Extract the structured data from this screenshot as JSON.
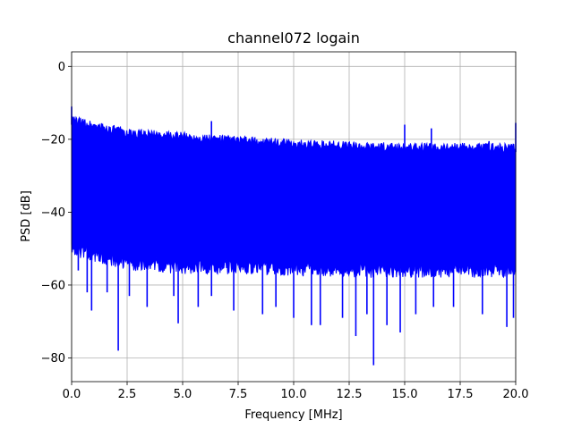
{
  "chart_data": {
    "type": "line",
    "title": "channel072 logain",
    "xlabel": "Frequency [MHz]",
    "ylabel": "PSD [dB]",
    "xlim": [
      0,
      20
    ],
    "ylim": [
      -86.5,
      4
    ],
    "xticks": [
      0,
      2.5,
      5,
      7.5,
      10,
      12.5,
      15,
      17.5,
      20
    ],
    "xtick_labels": [
      "0.0",
      "2.5",
      "5.0",
      "7.5",
      "10.0",
      "12.5",
      "15.0",
      "17.5",
      "20.0"
    ],
    "yticks": [
      0,
      -20,
      -40,
      -60,
      -80
    ],
    "ytick_labels": [
      "0",
      "−20",
      "−40",
      "−60",
      "−80"
    ],
    "grid": true,
    "series": [
      {
        "color": "#0000ff",
        "upper_envelope": [
          [
            0,
            -11
          ],
          [
            0.1,
            -15
          ],
          [
            0.5,
            -17
          ],
          [
            1,
            -18
          ],
          [
            1.2,
            -16
          ],
          [
            1.5,
            -18.5
          ],
          [
            2.5,
            -19
          ],
          [
            3,
            -18.5
          ],
          [
            5,
            -19.5
          ],
          [
            6.3,
            -15
          ],
          [
            6.5,
            -19.5
          ],
          [
            7.5,
            -20
          ],
          [
            10,
            -21
          ],
          [
            12.5,
            -21.5
          ],
          [
            15,
            -16
          ],
          [
            15.1,
            -22
          ],
          [
            16.2,
            -17
          ],
          [
            16.4,
            -22
          ],
          [
            17.5,
            -22
          ],
          [
            18.8,
            -20.5
          ],
          [
            20,
            -22
          ],
          [
            20,
            -15.5
          ]
        ],
        "band_upper": [
          [
            0,
            -16
          ],
          [
            2.5,
            -19.5
          ],
          [
            5,
            -20.5
          ],
          [
            7.5,
            -21.5
          ],
          [
            10,
            -22.5
          ],
          [
            12.5,
            -23
          ],
          [
            15,
            -23.5
          ],
          [
            17.5,
            -23.5
          ],
          [
            20,
            -23.5
          ]
        ],
        "band_lower": [
          [
            0,
            -48
          ],
          [
            2.5,
            -52
          ],
          [
            5,
            -53
          ],
          [
            7.5,
            -53
          ],
          [
            10,
            -53.5
          ],
          [
            12.5,
            -54
          ],
          [
            15,
            -54
          ],
          [
            17.5,
            -54
          ],
          [
            20,
            -54
          ]
        ],
        "lower_spikes": [
          [
            0.3,
            -56
          ],
          [
            0.7,
            -62
          ],
          [
            0.9,
            -67
          ],
          [
            1.6,
            -62
          ],
          [
            2.1,
            -78
          ],
          [
            2.6,
            -63
          ],
          [
            3.4,
            -66
          ],
          [
            4.6,
            -63
          ],
          [
            4.8,
            -70.5
          ],
          [
            5.7,
            -66
          ],
          [
            6.3,
            -63
          ],
          [
            7.3,
            -67
          ],
          [
            8.6,
            -68
          ],
          [
            9.2,
            -66
          ],
          [
            10,
            -69
          ],
          [
            10.8,
            -71
          ],
          [
            11.2,
            -71
          ],
          [
            12.2,
            -69
          ],
          [
            12.8,
            -74
          ],
          [
            13.3,
            -68
          ],
          [
            13.6,
            -82
          ],
          [
            14.2,
            -71
          ],
          [
            14.8,
            -73
          ],
          [
            15.5,
            -68
          ],
          [
            16.3,
            -66
          ],
          [
            17.2,
            -66
          ],
          [
            18.5,
            -68
          ],
          [
            19.6,
            -71.5
          ],
          [
            19.9,
            -69
          ]
        ]
      }
    ]
  }
}
